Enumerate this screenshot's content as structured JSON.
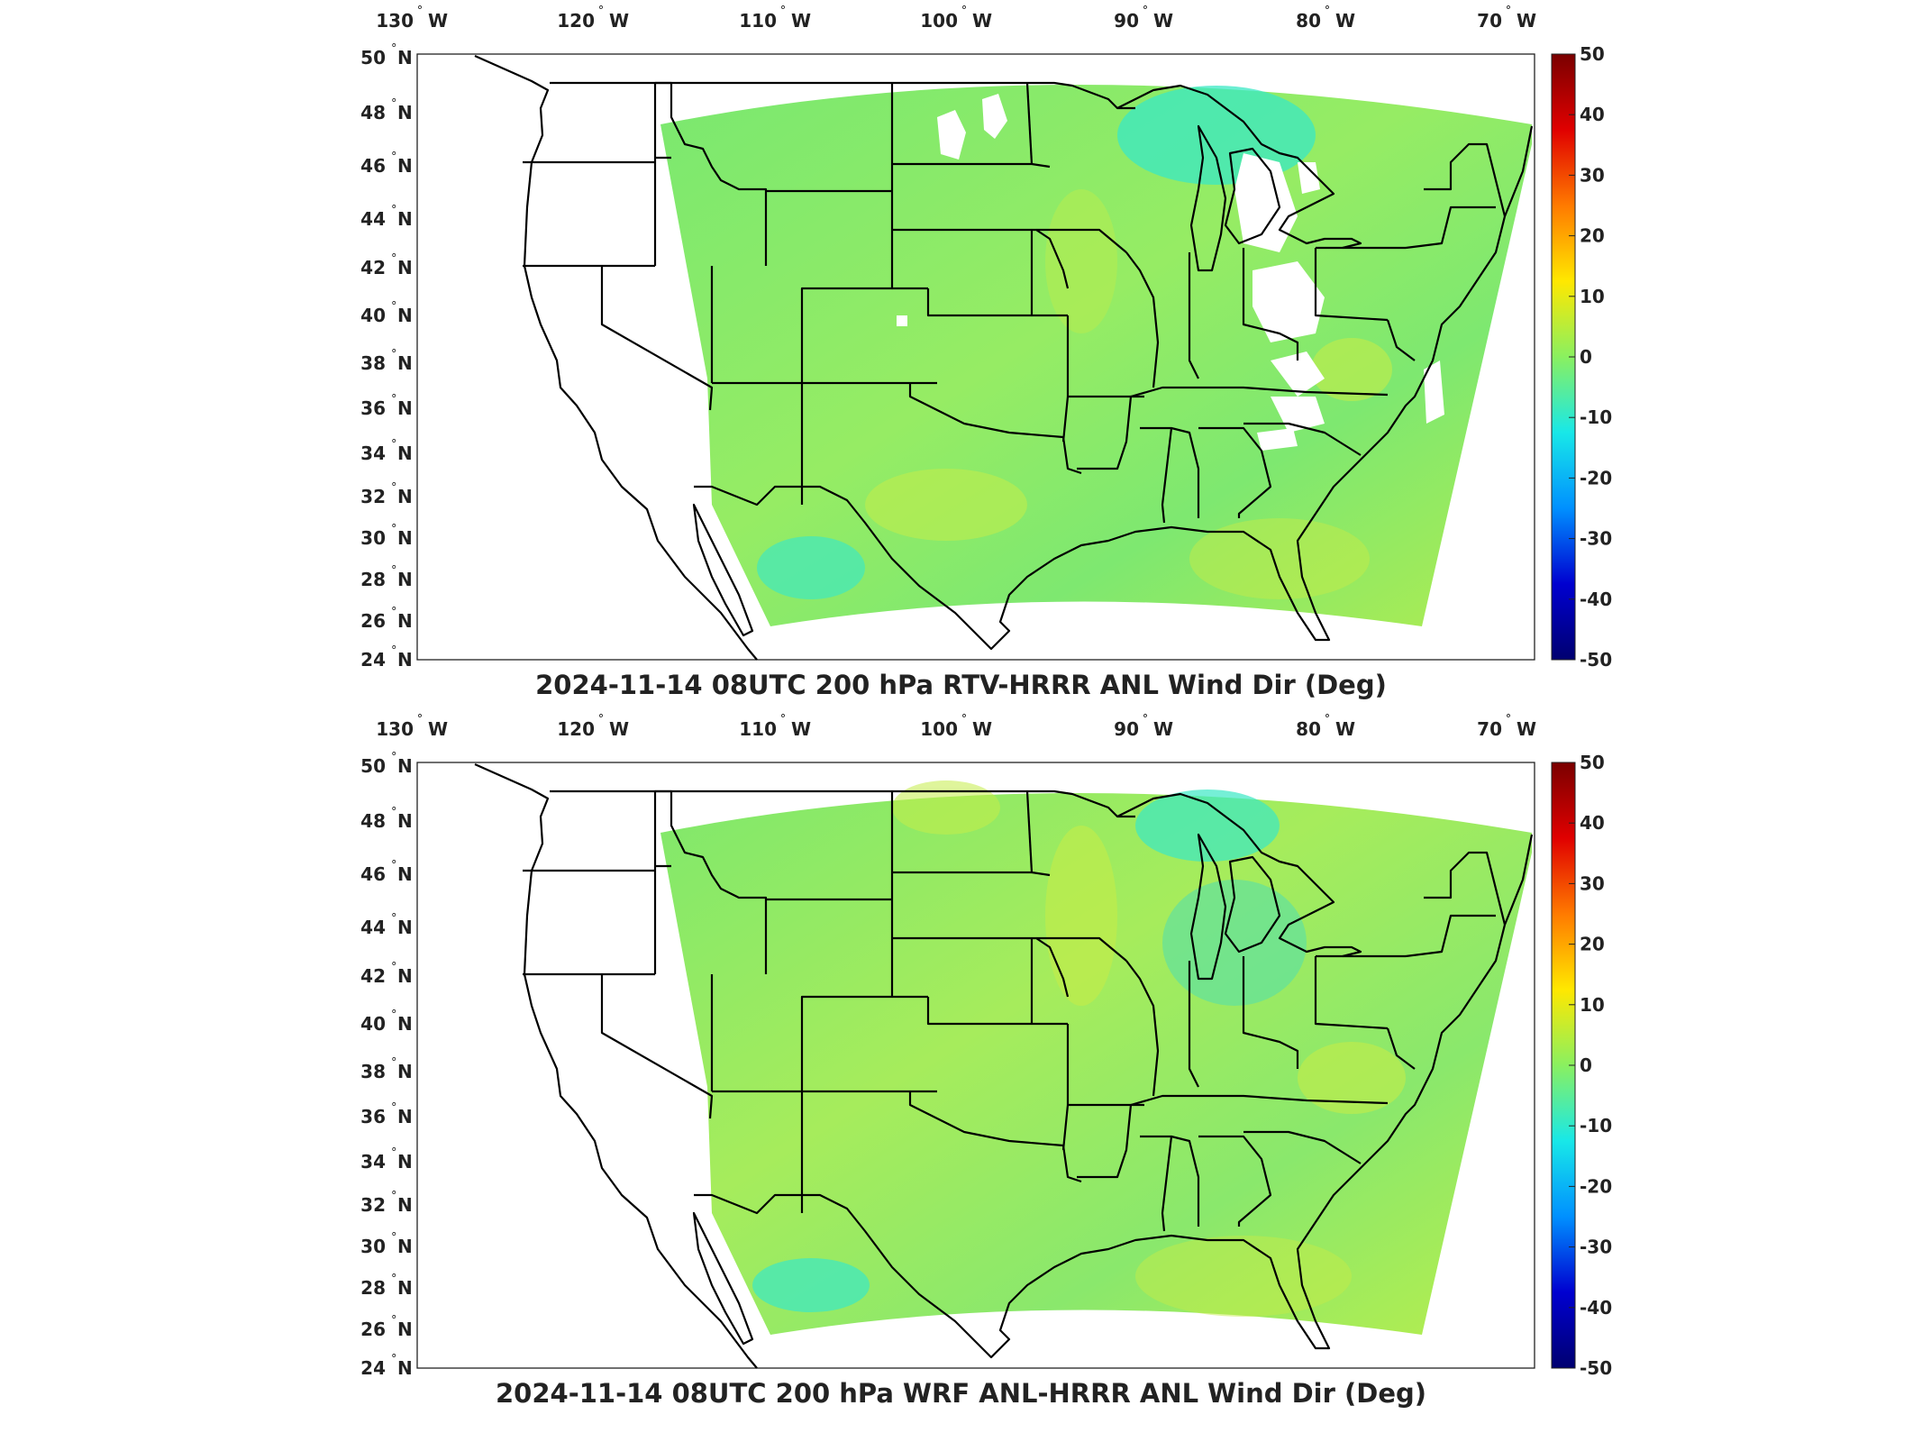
{
  "colors": {
    "field_main": "#84e86c",
    "field_yellow": "#c4ec48",
    "field_cyan": "#3ae8c4",
    "field_teal": "#56e0a8",
    "missing": "#ffffff",
    "state_lines": "#000000",
    "colorbar_stops": [
      "#7a0000",
      "#e00000",
      "#ff7a00",
      "#ffe800",
      "#8af060",
      "#18e8e8",
      "#0090ff",
      "#0000d0",
      "#000070"
    ]
  },
  "panels": [
    {
      "title": "2024-11-14 08UTC 200 hPa RTV-HRRR ANL Wind Dir (Deg)",
      "has_missing_patches": true
    },
    {
      "title": "2024-11-14 08UTC 200 hPa WRF ANL-HRRR ANL Wind Dir (Deg)",
      "has_missing_patches": false
    }
  ],
  "lon_ticks": [
    {
      "value": "130",
      "hemi": "W"
    },
    {
      "value": "120",
      "hemi": "W"
    },
    {
      "value": "110",
      "hemi": "W"
    },
    {
      "value": "100",
      "hemi": "W"
    },
    {
      "value": "90",
      "hemi": "W"
    },
    {
      "value": "80",
      "hemi": "W"
    },
    {
      "value": "70",
      "hemi": "W"
    }
  ],
  "lat_ticks": [
    {
      "value": "50",
      "hemi": "N"
    },
    {
      "value": "48",
      "hemi": "N"
    },
    {
      "value": "46",
      "hemi": "N"
    },
    {
      "value": "44",
      "hemi": "N"
    },
    {
      "value": "42",
      "hemi": "N"
    },
    {
      "value": "40",
      "hemi": "N"
    },
    {
      "value": "38",
      "hemi": "N"
    },
    {
      "value": "36",
      "hemi": "N"
    },
    {
      "value": "34",
      "hemi": "N"
    },
    {
      "value": "32",
      "hemi": "N"
    },
    {
      "value": "30",
      "hemi": "N"
    },
    {
      "value": "28",
      "hemi": "N"
    },
    {
      "value": "26",
      "hemi": "N"
    },
    {
      "value": "24",
      "hemi": "N"
    }
  ],
  "colorbar": {
    "min": -50,
    "max": 50,
    "ticks": [
      "50",
      "40",
      "30",
      "20",
      "10",
      "0",
      "-10",
      "-20",
      "-30",
      "-40",
      "-50"
    ]
  }
}
